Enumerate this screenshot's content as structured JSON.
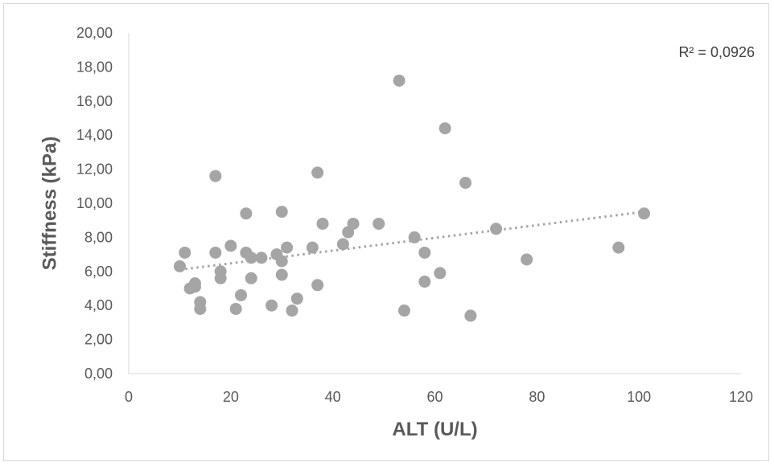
{
  "chart_data": {
    "type": "scatter",
    "title": "",
    "xlabel": "ALT (U/L)",
    "ylabel": "Stiffness (kPa)",
    "xlim": [
      0,
      120
    ],
    "ylim": [
      0,
      20
    ],
    "xticks": [
      "0",
      "20",
      "40",
      "60",
      "80",
      "100",
      "120"
    ],
    "yticks": [
      "0,00",
      "2,00",
      "4,00",
      "6,00",
      "8,00",
      "10,00",
      "12,00",
      "14,00",
      "16,00",
      "18,00",
      "20,00"
    ],
    "grid": false,
    "point_color": "#a5a5a5",
    "trendline": {
      "type": "linear",
      "style": "dotted",
      "color": "#a5a5a5",
      "x": [
        10,
        101
      ],
      "y": [
        6.1,
        9.5
      ]
    },
    "r2_label": "R² = 0,0926",
    "points": [
      {
        "x": 10,
        "y": 6.3
      },
      {
        "x": 11,
        "y": 7.1
      },
      {
        "x": 12,
        "y": 5.0
      },
      {
        "x": 13,
        "y": 5.3
      },
      {
        "x": 13,
        "y": 5.1
      },
      {
        "x": 14,
        "y": 4.2
      },
      {
        "x": 14,
        "y": 3.8
      },
      {
        "x": 17,
        "y": 11.6
      },
      {
        "x": 17,
        "y": 7.1
      },
      {
        "x": 18,
        "y": 6.0
      },
      {
        "x": 18,
        "y": 5.6
      },
      {
        "x": 20,
        "y": 7.5
      },
      {
        "x": 21,
        "y": 3.8
      },
      {
        "x": 22,
        "y": 4.6
      },
      {
        "x": 23,
        "y": 9.4
      },
      {
        "x": 23,
        "y": 7.1
      },
      {
        "x": 24,
        "y": 6.8
      },
      {
        "x": 24,
        "y": 5.6
      },
      {
        "x": 26,
        "y": 6.8
      },
      {
        "x": 28,
        "y": 4.0
      },
      {
        "x": 29,
        "y": 7.0
      },
      {
        "x": 30,
        "y": 9.5
      },
      {
        "x": 30,
        "y": 6.6
      },
      {
        "x": 30,
        "y": 5.8
      },
      {
        "x": 31,
        "y": 7.4
      },
      {
        "x": 32,
        "y": 3.7
      },
      {
        "x": 33,
        "y": 4.4
      },
      {
        "x": 36,
        "y": 7.4
      },
      {
        "x": 37,
        "y": 11.8
      },
      {
        "x": 37,
        "y": 5.2
      },
      {
        "x": 38,
        "y": 8.8
      },
      {
        "x": 42,
        "y": 7.6
      },
      {
        "x": 43,
        "y": 8.3
      },
      {
        "x": 44,
        "y": 8.8
      },
      {
        "x": 49,
        "y": 8.8
      },
      {
        "x": 53,
        "y": 17.2
      },
      {
        "x": 54,
        "y": 3.7
      },
      {
        "x": 56,
        "y": 8.0
      },
      {
        "x": 58,
        "y": 7.1
      },
      {
        "x": 58,
        "y": 5.4
      },
      {
        "x": 61,
        "y": 5.9
      },
      {
        "x": 62,
        "y": 14.4
      },
      {
        "x": 66,
        "y": 11.2
      },
      {
        "x": 67,
        "y": 3.4
      },
      {
        "x": 72,
        "y": 8.5
      },
      {
        "x": 78,
        "y": 6.7
      },
      {
        "x": 96,
        "y": 7.4
      },
      {
        "x": 101,
        "y": 9.4
      }
    ]
  }
}
